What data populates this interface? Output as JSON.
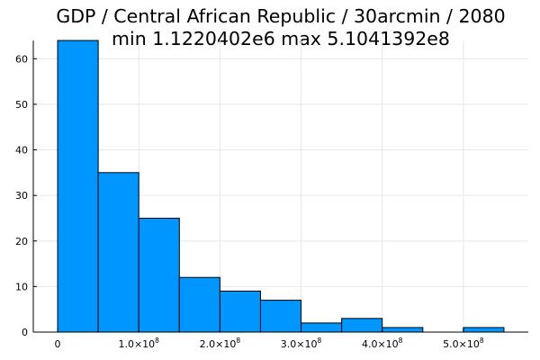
{
  "chart_data": {
    "type": "bar",
    "title_line1": "GDP / Central African Republic / 30arcmin / 2080",
    "title_line2": "min 1.1220402e6  max 5.1041392e8",
    "bin_width": 50000000,
    "bins": [
      {
        "start": 0,
        "end": 50000000,
        "count": 64
      },
      {
        "start": 50000000,
        "end": 100000000,
        "count": 35
      },
      {
        "start": 100000000,
        "end": 150000000,
        "count": 25
      },
      {
        "start": 150000000,
        "end": 200000000,
        "count": 12
      },
      {
        "start": 200000000,
        "end": 250000000,
        "count": 9
      },
      {
        "start": 250000000,
        "end": 300000000,
        "count": 7
      },
      {
        "start": 300000000,
        "end": 350000000,
        "count": 2
      },
      {
        "start": 350000000,
        "end": 400000000,
        "count": 3
      },
      {
        "start": 400000000,
        "end": 450000000,
        "count": 1
      },
      {
        "start": 450000000,
        "end": 500000000,
        "count": 0
      },
      {
        "start": 500000000,
        "end": 550000000,
        "count": 1
      }
    ],
    "xlim": [
      -30000000,
      580000000
    ],
    "ylim": [
      0,
      64
    ],
    "x_ticks": [
      {
        "value": 0,
        "mantissa": "0",
        "exp": ""
      },
      {
        "value": 100000000,
        "mantissa": "1.0×10",
        "exp": "8"
      },
      {
        "value": 200000000,
        "mantissa": "2.0×10",
        "exp": "8"
      },
      {
        "value": 300000000,
        "mantissa": "3.0×10",
        "exp": "8"
      },
      {
        "value": 400000000,
        "mantissa": "4.0×10",
        "exp": "8"
      },
      {
        "value": 500000000,
        "mantissa": "5.0×10",
        "exp": "8"
      }
    ],
    "y_ticks": [
      0,
      10,
      20,
      30,
      40,
      50,
      60
    ],
    "grid": true,
    "legend": "none",
    "bar_color": "#0096ff"
  }
}
